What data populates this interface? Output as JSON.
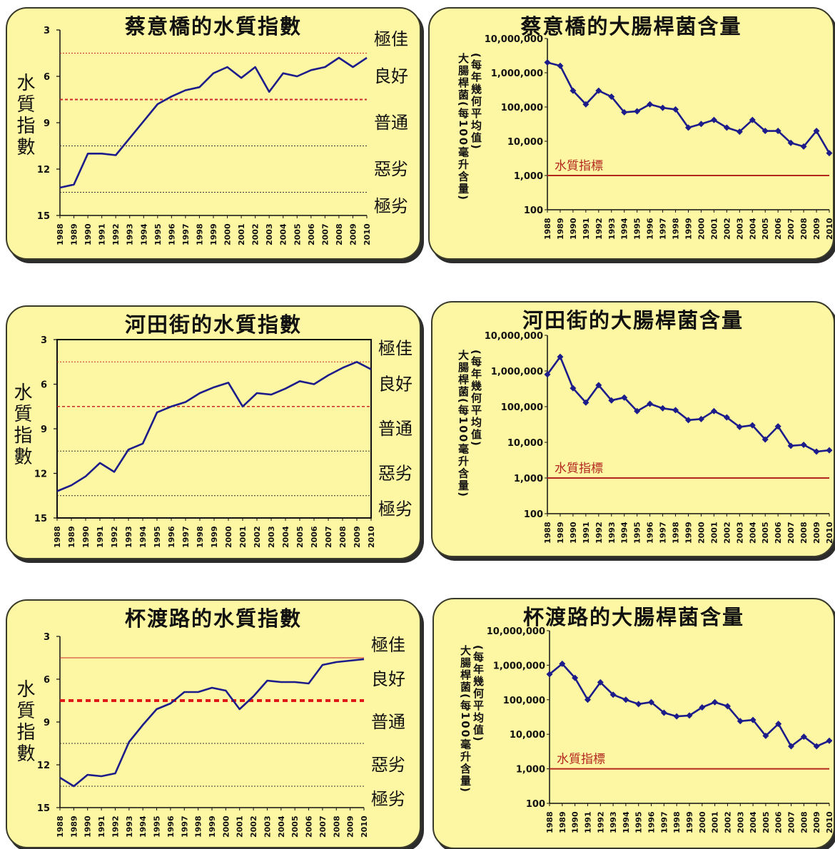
{
  "chart_data": [
    {
      "type": "line",
      "title": "蔡意橋的水質指數",
      "ylabel": "水質指數",
      "yticks": [
        "3",
        "6",
        "9",
        "12",
        "15"
      ],
      "ylim": [
        15,
        3
      ],
      "x": [
        "1988",
        "1989",
        "1990",
        "1991",
        "1992",
        "1993",
        "1994",
        "1995",
        "1996",
        "1997",
        "1998",
        "1999",
        "2000",
        "2001",
        "2002",
        "2003",
        "2004",
        "2005",
        "2006",
        "2007",
        "2008",
        "2009",
        "2010"
      ],
      "series": [
        {
          "values": [
            13.2,
            13,
            11,
            11,
            11.1,
            10,
            8.9,
            7.8,
            7.3,
            6.9,
            6.7,
            5.8,
            5.4,
            6.1,
            5.4,
            7,
            5.8,
            6,
            5.6,
            5.4,
            4.8,
            5.4,
            4.8
          ]
        }
      ],
      "bands": [
        "極佳",
        "良好",
        "普通",
        "惡劣",
        "極劣"
      ],
      "thresholds": [
        4.5,
        7.5,
        10.5,
        13.5
      ],
      "color": "#1c1c8a"
    },
    {
      "type": "line",
      "title": "蔡意橋的大腸桿菌含量",
      "ylabel": "大腸桿菌(每100毫升含量)",
      "ylabel2": "(每年幾何平均值)",
      "yticks": [
        "100",
        "1,000",
        "10,000",
        "100,000",
        "1,000,000",
        "10,000,000"
      ],
      "log_scale": true,
      "ylim": [
        100,
        10000000
      ],
      "x": [
        "1988",
        "1989",
        "1990",
        "1991",
        "1992",
        "1993",
        "1994",
        "1995",
        "1996",
        "1997",
        "1998",
        "1999",
        "2000",
        "2001",
        "2002",
        "2003",
        "2004",
        "2005",
        "2006",
        "2007",
        "2008",
        "2009",
        "2010"
      ],
      "series": [
        {
          "values": [
            2000000,
            1600000,
            300000,
            120000,
            300000,
            200000,
            70000,
            75000,
            120000,
            95000,
            85000,
            25000,
            32000,
            42000,
            25000,
            19000,
            42000,
            20000,
            20000,
            9000,
            7000,
            20000,
            4500
          ]
        }
      ],
      "reference_label": "水質指標",
      "reference_value": 1000,
      "color": "#1c1c8a"
    },
    {
      "type": "line",
      "title": "河田街的水質指數",
      "ylabel": "水質指數",
      "yticks": [
        "3",
        "6",
        "9",
        "12",
        "15"
      ],
      "ylim": [
        15,
        3
      ],
      "x": [
        "1988",
        "1989",
        "1990",
        "1991",
        "1992",
        "1993",
        "1994",
        "1995",
        "1996",
        "1997",
        "1998",
        "1999",
        "2000",
        "2001",
        "2002",
        "2003",
        "2004",
        "2005",
        "2006",
        "2007",
        "2008",
        "2009",
        "2010"
      ],
      "series": [
        {
          "values": [
            13.2,
            12.8,
            12.2,
            11.3,
            11.9,
            10.4,
            10,
            7.9,
            7.5,
            7.2,
            6.6,
            6.2,
            5.9,
            7.5,
            6.6,
            6.7,
            6.3,
            5.8,
            6,
            5.4,
            4.9,
            4.5,
            5
          ]
        }
      ],
      "bands": [
        "極佳",
        "良好",
        "普通",
        "惡劣",
        "極劣"
      ],
      "thresholds": [
        4.5,
        7.5,
        10.5,
        13.5
      ],
      "color": "#1c1c8a"
    },
    {
      "type": "line",
      "title": "河田街的大腸桿菌含量",
      "ylabel": "大腸桿菌(每100毫升含量)",
      "ylabel2": "(每年幾何平均值)",
      "yticks": [
        "100",
        "1,000",
        "10,000",
        "100,000",
        "1,000,000",
        "10,000,000"
      ],
      "log_scale": true,
      "ylim": [
        100,
        10000000
      ],
      "x": [
        "1988",
        "1989",
        "1990",
        "1991",
        "1992",
        "1993",
        "1994",
        "1995",
        "1996",
        "1997",
        "1998",
        "1999",
        "2000",
        "2001",
        "2002",
        "2003",
        "2004",
        "2005",
        "2006",
        "2007",
        "2008",
        "2009",
        "2010"
      ],
      "series": [
        {
          "values": [
            800000,
            2500000,
            330000,
            130000,
            400000,
            150000,
            180000,
            75000,
            120000,
            90000,
            80000,
            42000,
            45000,
            75000,
            50000,
            27000,
            30000,
            12000,
            28000,
            8000,
            8500,
            5500,
            6000
          ]
        }
      ],
      "reference_label": "水質指標",
      "reference_value": 1000,
      "color": "#1c1c8a"
    },
    {
      "type": "line",
      "title": "杯渡路的水質指數",
      "ylabel": "水質指數",
      "yticks": [
        "3",
        "6",
        "9",
        "12",
        "15"
      ],
      "ylim": [
        15,
        3
      ],
      "x": [
        "1988",
        "1989",
        "1990",
        "1991",
        "1992",
        "1993",
        "1994",
        "1995",
        "1996",
        "1997",
        "1998",
        "1999",
        "2000",
        "2001",
        "2002",
        "2003",
        "2004",
        "2005",
        "2006",
        "2007",
        "2008",
        "2009",
        "2010"
      ],
      "series": [
        {
          "values": [
            12.9,
            13.5,
            12.7,
            12.8,
            12.6,
            10.4,
            9.2,
            8.1,
            7.7,
            6.9,
            6.9,
            6.6,
            6.8,
            8.1,
            7.2,
            6.1,
            6.2,
            6.2,
            6.3,
            5,
            4.8,
            4.7,
            4.6
          ]
        }
      ],
      "bands": [
        "極佳",
        "良好",
        "普通",
        "惡劣",
        "極劣"
      ],
      "thresholds": [
        4.5,
        7.5,
        10.5,
        13.5
      ],
      "color": "#1c1c8a"
    },
    {
      "type": "line",
      "title": "杯渡路的大腸桿菌含量",
      "ylabel": "大腸桿菌(每100毫升含量)",
      "ylabel2": "(每年幾何平均值)",
      "yticks": [
        "100",
        "1,000",
        "10,000",
        "100,000",
        "1,000,000",
        "10,000,000"
      ],
      "log_scale": true,
      "ylim": [
        100,
        10000000
      ],
      "x": [
        "1988",
        "1989",
        "1990",
        "1991",
        "1992",
        "1993",
        "1994",
        "1995",
        "1996",
        "1997",
        "1998",
        "1999",
        "2000",
        "2001",
        "2002",
        "2003",
        "2004",
        "2005",
        "2006",
        "2007",
        "2008",
        "2009",
        "2010"
      ],
      "series": [
        {
          "values": [
            550000,
            1100000,
            430000,
            100000,
            320000,
            140000,
            100000,
            75000,
            85000,
            42000,
            33000,
            35000,
            60000,
            85000,
            65000,
            24000,
            26000,
            9000,
            20000,
            4500,
            8500,
            4500,
            6500
          ]
        }
      ],
      "reference_label": "水質指標",
      "reference_value": 1000,
      "color": "#1c1c8a"
    }
  ]
}
